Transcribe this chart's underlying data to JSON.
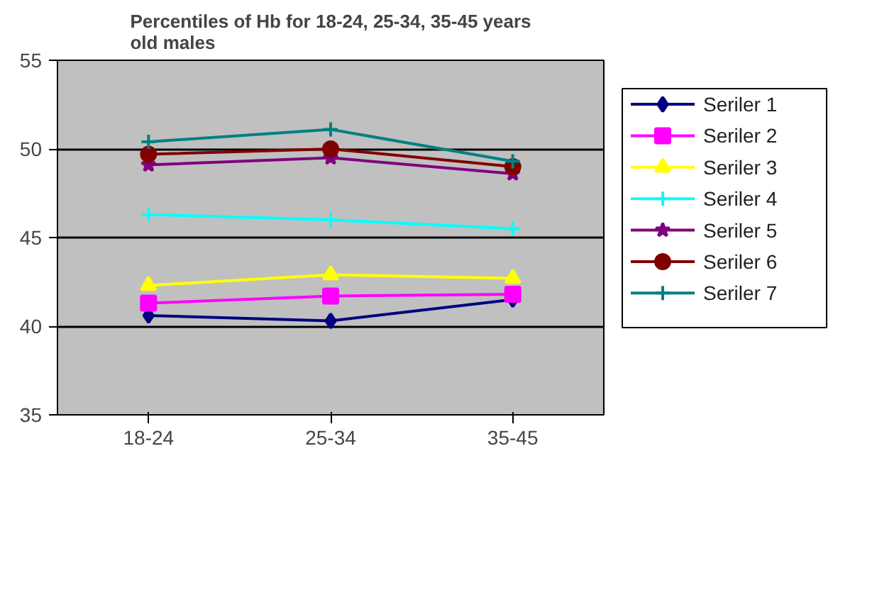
{
  "chart_data": {
    "type": "line",
    "title": "Percentiles of Hb for 18-24, 25-34, 35-45 years\nold males",
    "categories": [
      "18-24",
      "25-34",
      "35-45"
    ],
    "ylim": [
      35,
      55
    ],
    "yticks": [
      35,
      40,
      45,
      50,
      55
    ],
    "grid": "y",
    "legend": "right",
    "series": [
      {
        "name": "Seriler 1",
        "color": "#000080",
        "marker": "diamond",
        "values": [
          40.6,
          40.3,
          41.5
        ]
      },
      {
        "name": "Seriler 2",
        "color": "#ff00ff",
        "marker": "square",
        "values": [
          41.3,
          41.7,
          41.8
        ]
      },
      {
        "name": "Seriler 3",
        "color": "#ffff00",
        "marker": "triangle",
        "values": [
          42.3,
          42.9,
          42.7
        ]
      },
      {
        "name": "Seriler 4",
        "color": "#00ffff",
        "marker": "cross",
        "values": [
          46.3,
          46.0,
          45.5
        ]
      },
      {
        "name": "Seriler 5",
        "color": "#800080",
        "marker": "star",
        "values": [
          49.1,
          49.5,
          48.6
        ]
      },
      {
        "name": "Seriler 6",
        "color": "#800000",
        "marker": "circle",
        "values": [
          49.7,
          50.0,
          49.0
        ]
      },
      {
        "name": "Seriler 7",
        "color": "#008080",
        "marker": "cross",
        "values": [
          50.4,
          51.1,
          49.3
        ]
      }
    ]
  }
}
